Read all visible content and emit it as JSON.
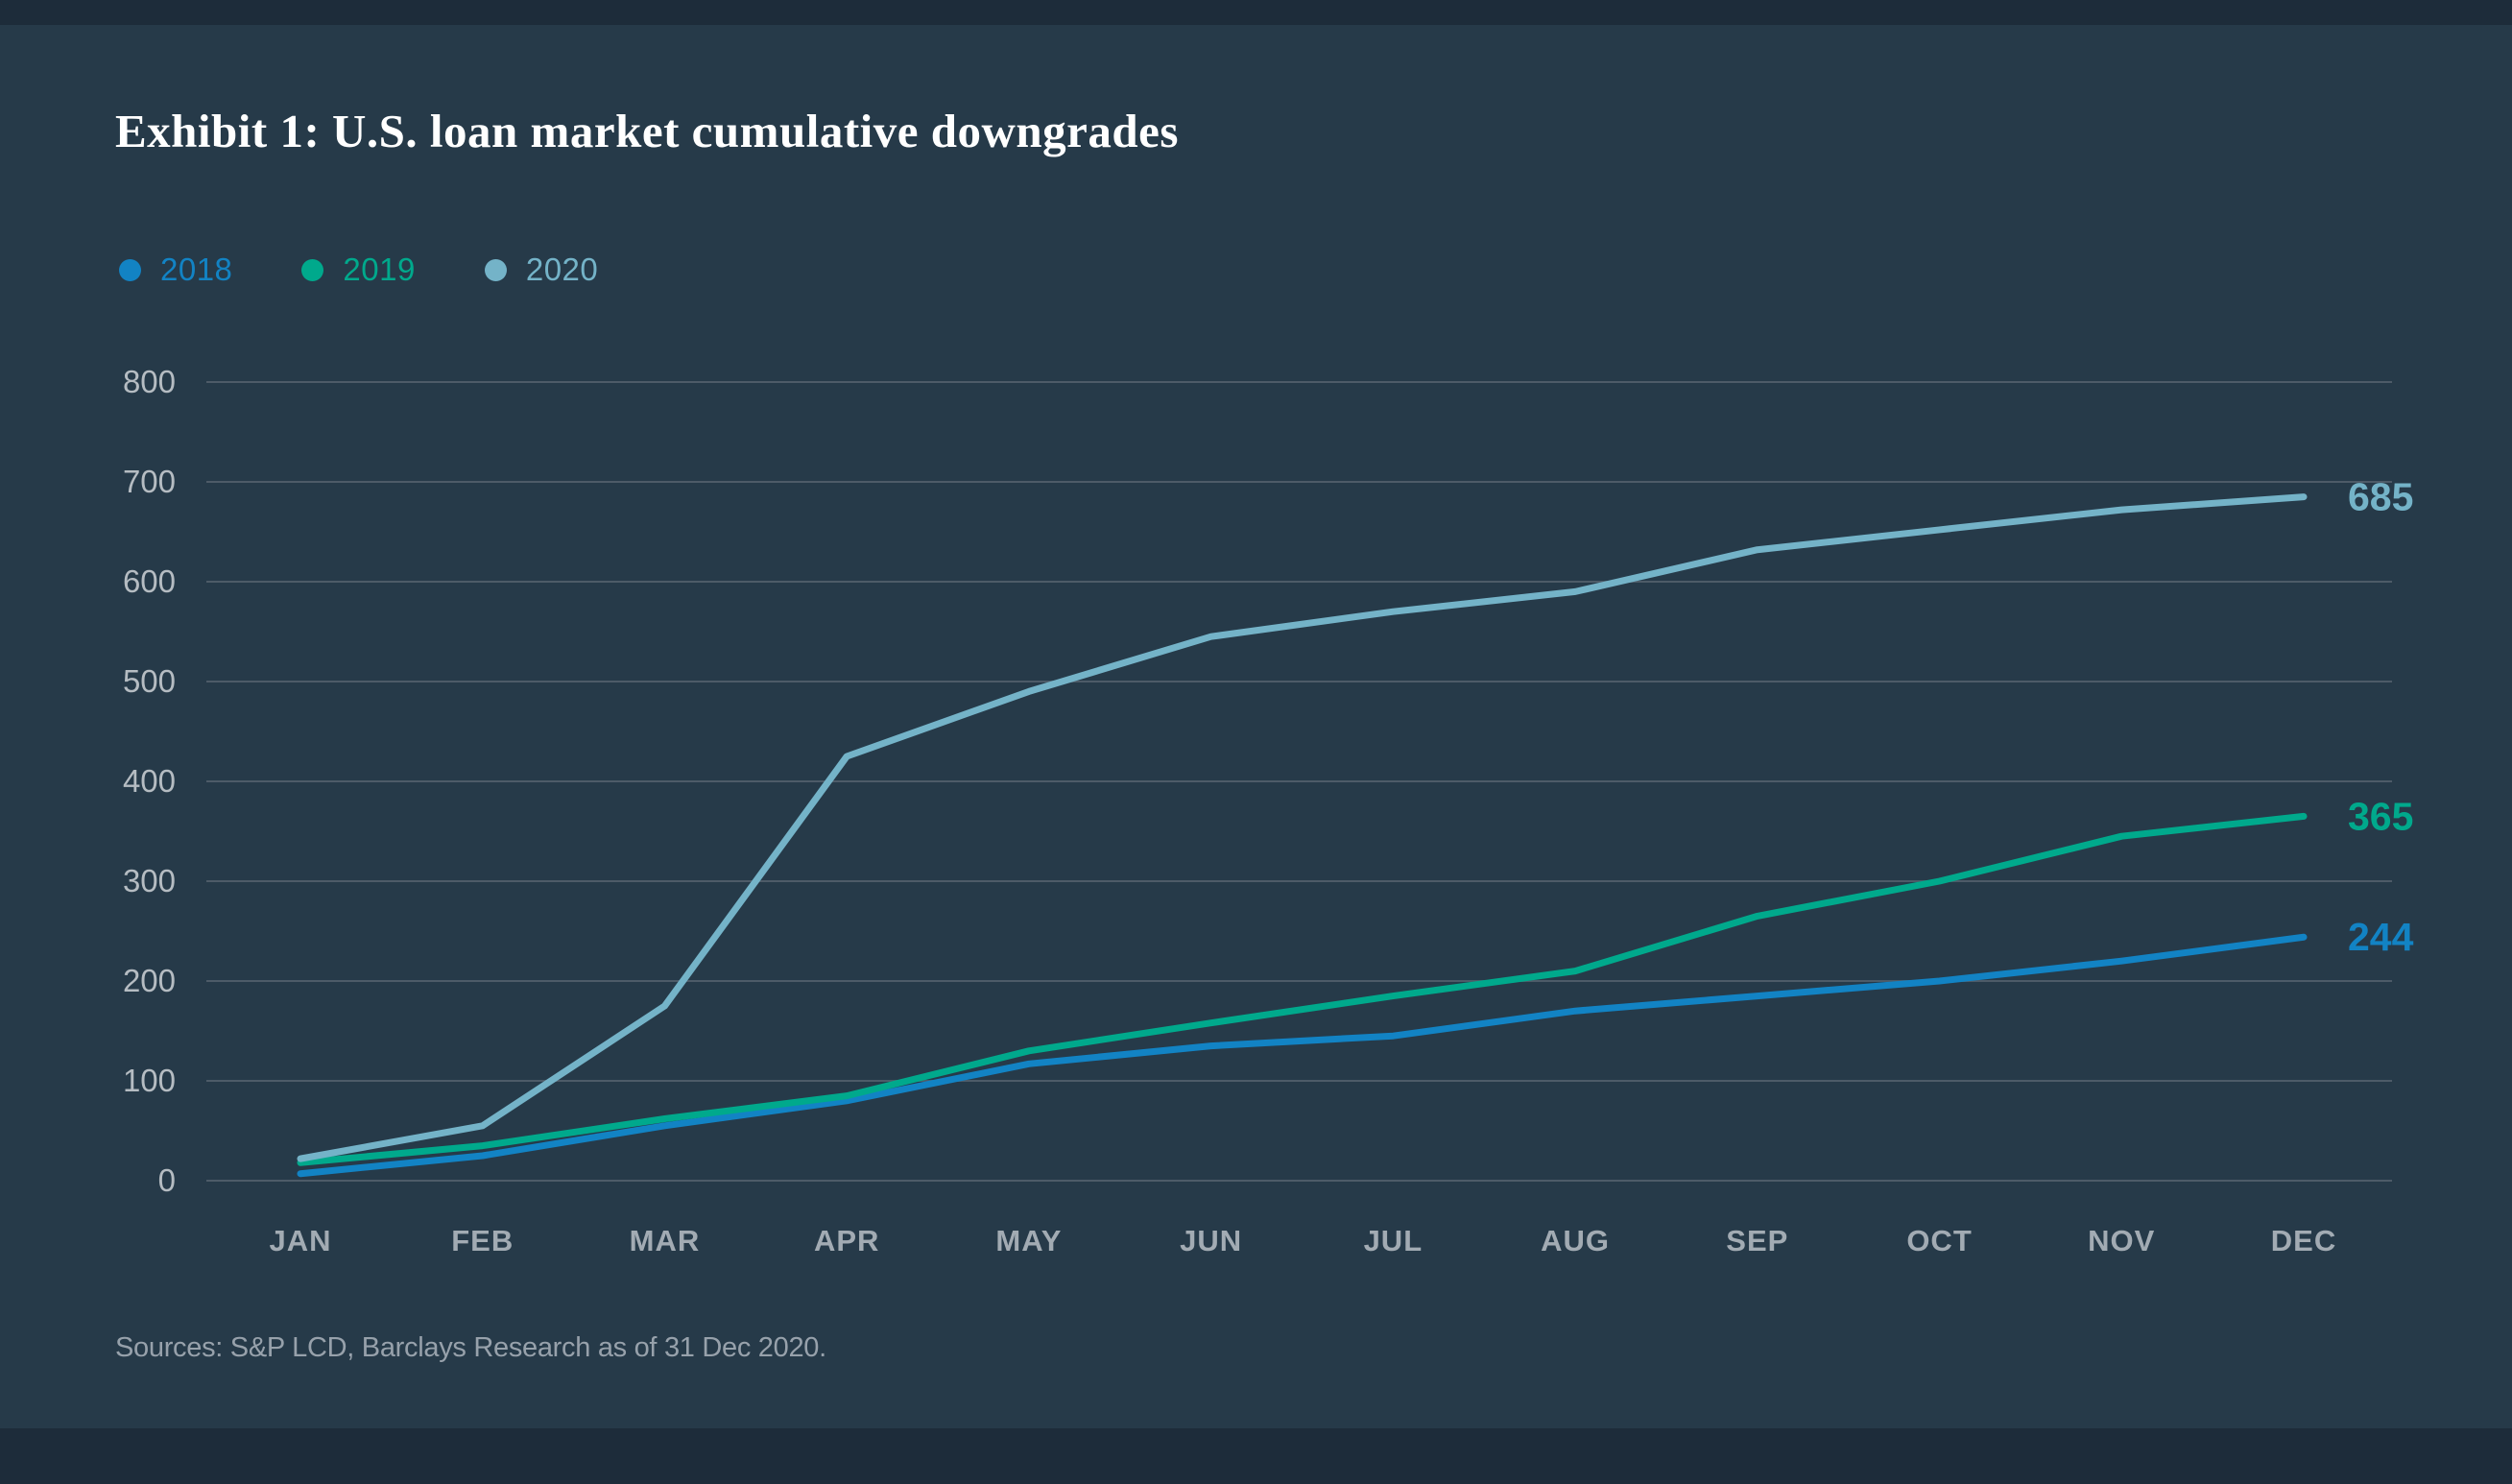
{
  "title": "Exhibit 1: U.S. loan market cumulative downgrades",
  "source_note": "Sources: S&P LCD, Barclays Research as of 31 Dec 2020.",
  "colors": {
    "background": "#263a49",
    "edge_band": "#1d2c3a",
    "gridline": "#4d5b68",
    "y_axis_label": "#b5bcc2",
    "month_label": "#a2abb3",
    "title": "#ffffff",
    "source": "#97a1ab"
  },
  "legend": {
    "items": [
      {
        "label": "2018",
        "series": "2018"
      },
      {
        "label": "2019",
        "series": "2019"
      },
      {
        "label": "2020",
        "series": "2020"
      }
    ]
  },
  "chart_data": {
    "type": "line",
    "title": "Exhibit 1: U.S. loan market cumulative downgrades",
    "categories": [
      "JAN",
      "FEB",
      "MAR",
      "APR",
      "MAY",
      "JUN",
      "JUL",
      "AUG",
      "SEP",
      "OCT",
      "NOV",
      "DEC"
    ],
    "series": [
      {
        "name": "2018",
        "color": "#1283c4",
        "values": [
          7,
          25,
          55,
          80,
          117,
          135,
          145,
          170,
          185,
          200,
          220,
          244
        ],
        "end_label": "244"
      },
      {
        "name": "2019",
        "color": "#00a98c",
        "values": [
          18,
          35,
          62,
          85,
          130,
          158,
          185,
          210,
          265,
          300,
          345,
          365
        ],
        "end_label": "365"
      },
      {
        "name": "2020",
        "color": "#74b3c8",
        "values": [
          22,
          55,
          175,
          425,
          490,
          545,
          570,
          590,
          632,
          652,
          672,
          685
        ],
        "end_label": "685"
      }
    ],
    "xlabel": "",
    "ylabel": "",
    "ylim": [
      0,
      800
    ],
    "y_ticks": [
      0,
      100,
      200,
      300,
      400,
      500,
      600,
      700,
      800
    ],
    "grid": true,
    "legend_position": "top-left"
  }
}
